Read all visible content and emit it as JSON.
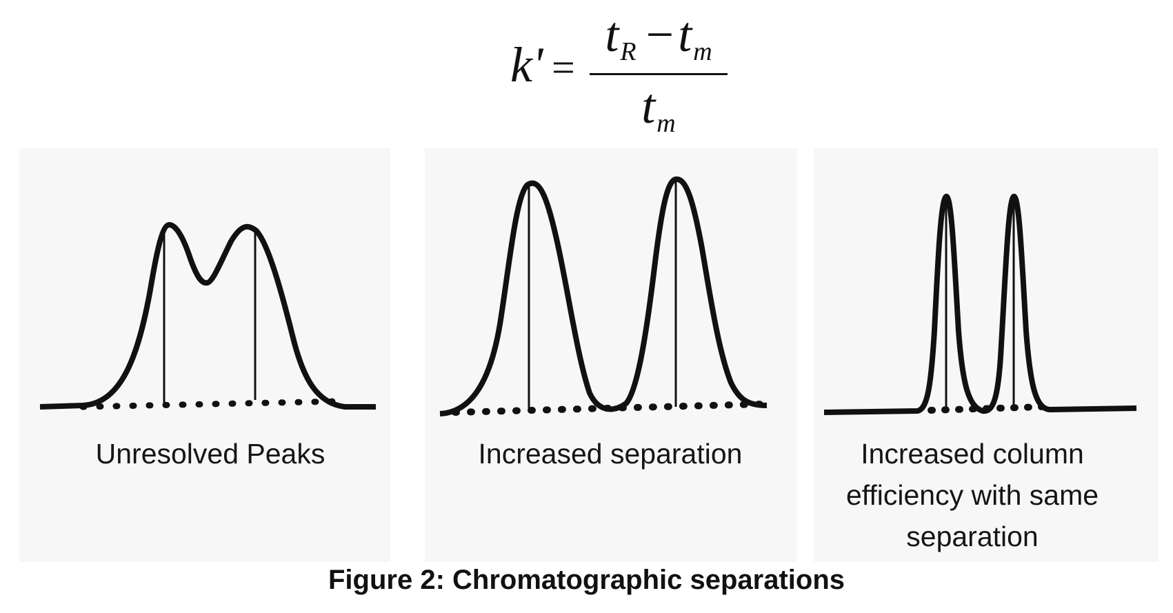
{
  "formula": {
    "lhs": "k'",
    "equals": "=",
    "numerator_t": "t",
    "numerator_sub": "R",
    "minus": "−",
    "numerator_t2": "t",
    "numerator_sub2": "m",
    "denominator_t": "t",
    "denominator_sub": "m"
  },
  "panels": [
    {
      "label": "Unresolved Peaks"
    },
    {
      "label": "Increased separation"
    },
    {
      "label": "Increased column efficiency with same separation"
    }
  ],
  "caption": "Figure 2: Chromatographic separations",
  "colors": {
    "ink": "#111111",
    "panel_background": "#f7f7f7"
  }
}
